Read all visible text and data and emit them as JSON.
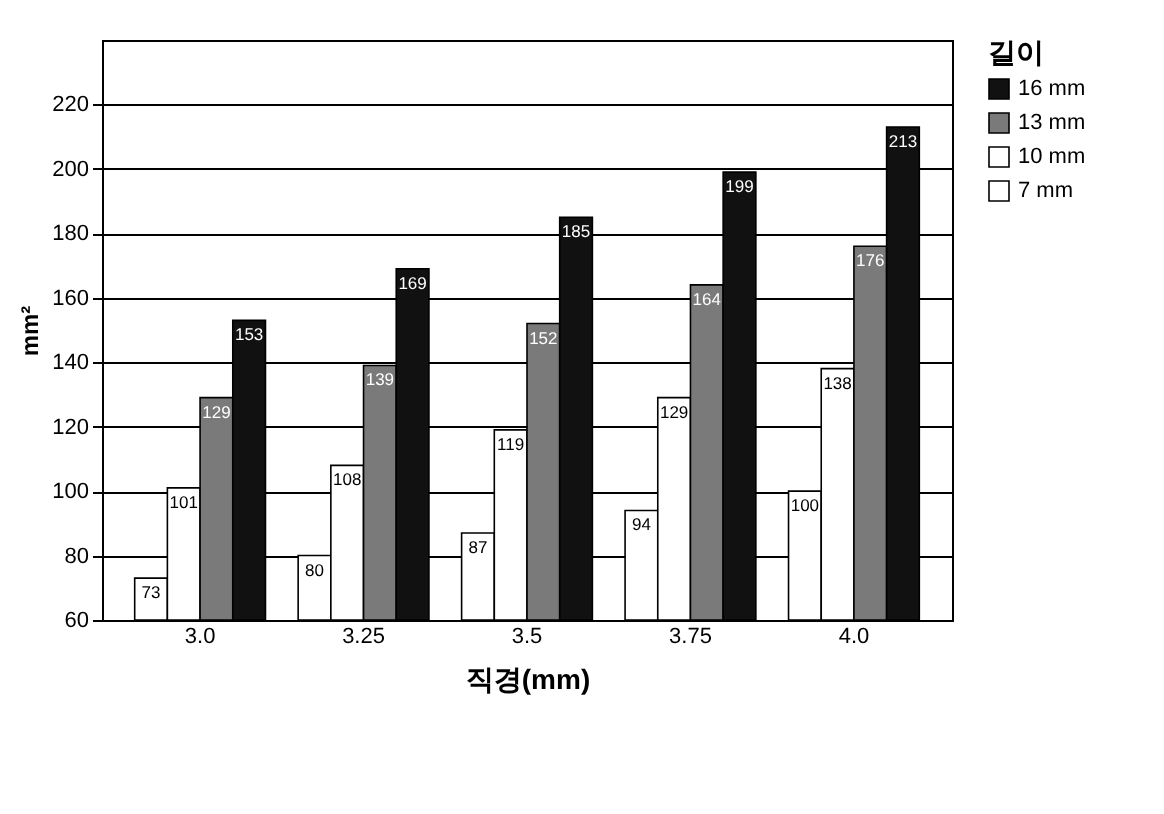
{
  "chart_data": {
    "type": "bar",
    "xlabel": "직경(mm)",
    "ylabel": "mm²",
    "legend_title": "길이",
    "categories": [
      "3.0",
      "3.25",
      "3.5",
      "3.75",
      "4.0"
    ],
    "series": [
      {
        "name": "7 mm",
        "color": "#ffffff",
        "values": [
          73,
          80,
          87,
          94,
          100
        ]
      },
      {
        "name": "10 mm",
        "color": "#ffffff",
        "values": [
          101,
          108,
          119,
          129,
          138
        ]
      },
      {
        "name": "13 mm",
        "color": "#7a7a7a",
        "values": [
          129,
          139,
          152,
          164,
          176
        ]
      },
      {
        "name": "16 mm",
        "color": "#111111",
        "values": [
          153,
          169,
          185,
          199,
          213
        ]
      }
    ],
    "ylim": [
      60,
      240
    ],
    "yticks": [
      60,
      80,
      100,
      120,
      140,
      160,
      180,
      200,
      220
    ],
    "grid": "y",
    "legend": "right",
    "data_labels": true
  }
}
